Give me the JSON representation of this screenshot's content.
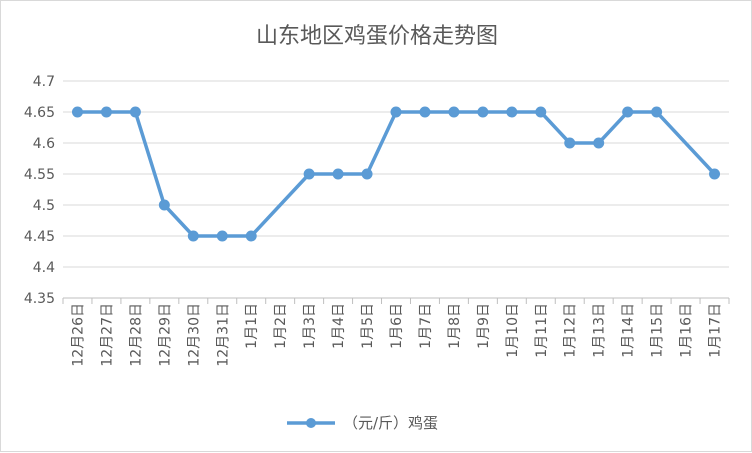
{
  "chart_data": {
    "type": "line",
    "title": "山东地区鸡蛋价格走势图",
    "xlabel": "",
    "ylabel": "",
    "ylim": [
      4.35,
      4.7
    ],
    "yticks": [
      "4.35",
      "4.4",
      "4.45",
      "4.5",
      "4.55",
      "4.6",
      "4.65",
      "4.7"
    ],
    "grid": true,
    "legend_position": "bottom",
    "line_color": "#5b9bd5",
    "categories": [
      "12月26日",
      "12月27日",
      "12月28日",
      "12月29日",
      "12月30日",
      "12月31日",
      "1月1日",
      "1月2日",
      "1月3日",
      "1月4日",
      "1月5日",
      "1月6日",
      "1月7日",
      "1月8日",
      "1月9日",
      "1月10日",
      "1月11日",
      "1月12日",
      "1月13日",
      "1月14日",
      "1月15日",
      "1月16日",
      "1月17日"
    ],
    "series": [
      {
        "name": "（元/斤）鸡蛋",
        "values": [
          4.65,
          4.65,
          4.65,
          4.5,
          4.45,
          4.45,
          4.45,
          null,
          4.55,
          4.55,
          4.55,
          4.65,
          4.65,
          4.65,
          4.65,
          4.65,
          4.65,
          4.6,
          4.6,
          4.65,
          4.65,
          null,
          4.55
        ]
      }
    ]
  }
}
